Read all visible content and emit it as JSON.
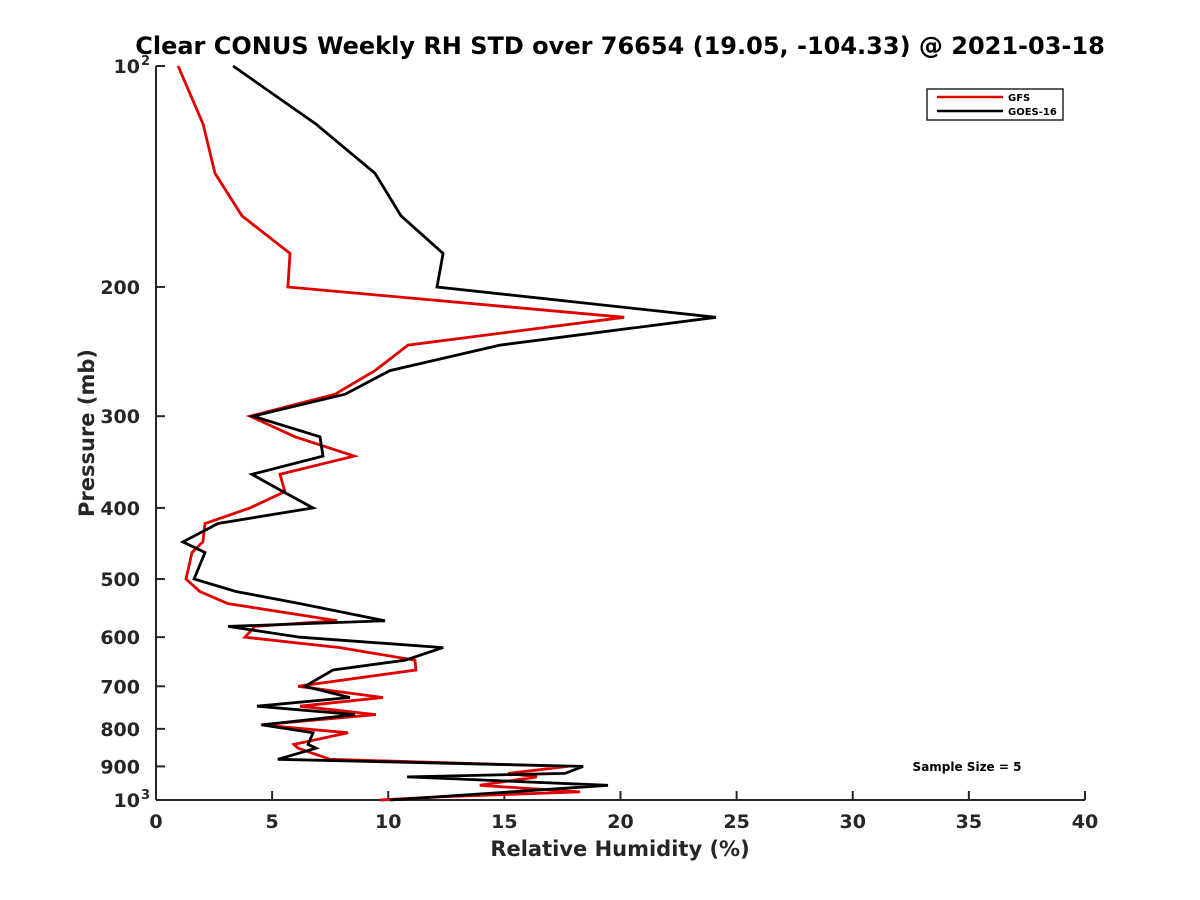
{
  "chart_data": {
    "type": "line",
    "title": "Clear CONUS Weekly RH STD over 76654 (19.05, -104.33) @ 2021-03-18",
    "xlabel": "Relative Humidity (%)",
    "ylabel": "Pressure (mb)",
    "xlim": [
      0,
      40
    ],
    "ylim": [
      100,
      1000
    ],
    "yscale": "log",
    "yreversed": true,
    "xticks": [
      0,
      5,
      10,
      15,
      20,
      25,
      30,
      35,
      40
    ],
    "xtick_labels": [
      "0",
      "5",
      "10",
      "15",
      "20",
      "25",
      "30",
      "35",
      "40"
    ],
    "yticks": [
      100,
      200,
      300,
      400,
      500,
      600,
      700,
      800,
      900,
      1000
    ],
    "ytick_labels": [
      "10",
      "200",
      "300",
      "400",
      "500",
      "600",
      "700",
      "800",
      "900",
      "10"
    ],
    "ytick_exponents": {
      "100": "2",
      "1000": "3"
    },
    "grid": false,
    "legend_position": "top-right",
    "annotation": "Sample Size = 5",
    "series": [
      {
        "name": "GFS",
        "color": "#e00000",
        "points": [
          [
            0.95,
            100
          ],
          [
            2.03,
            120
          ],
          [
            2.54,
            140
          ],
          [
            3.7,
            160
          ],
          [
            5.77,
            180
          ],
          [
            5.68,
            200
          ],
          [
            20.16,
            220
          ],
          [
            10.85,
            240
          ],
          [
            9.43,
            260
          ],
          [
            7.71,
            280
          ],
          [
            4.05,
            300
          ],
          [
            5.99,
            320
          ],
          [
            8.53,
            340
          ],
          [
            5.34,
            360
          ],
          [
            5.55,
            380
          ],
          [
            4.05,
            400
          ],
          [
            2.11,
            420
          ],
          [
            2.02,
            445
          ],
          [
            1.55,
            460
          ],
          [
            1.29,
            500
          ],
          [
            1.89,
            520
          ],
          [
            3.1,
            540
          ],
          [
            7.8,
            570
          ],
          [
            4.26,
            580
          ],
          [
            3.83,
            600
          ],
          [
            7.92,
            620
          ],
          [
            11.15,
            645
          ],
          [
            11.19,
            665
          ],
          [
            6.12,
            700
          ],
          [
            9.77,
            725
          ],
          [
            6.2,
            745
          ],
          [
            9.47,
            765
          ],
          [
            4.52,
            790
          ],
          [
            8.27,
            810
          ],
          [
            5.94,
            840
          ],
          [
            6.12,
            850
          ],
          [
            7.49,
            880
          ],
          [
            17.74,
            900
          ],
          [
            15.15,
            920
          ],
          [
            16.4,
            930
          ],
          [
            13.94,
            955
          ],
          [
            18.26,
            975
          ],
          [
            12.23,
            990
          ],
          [
            9.64,
            1000
          ]
        ]
      },
      {
        "name": "GOES-16",
        "color": "#000000",
        "points": [
          [
            3.32,
            100
          ],
          [
            6.89,
            120
          ],
          [
            9.43,
            140
          ],
          [
            10.55,
            160
          ],
          [
            12.36,
            180
          ],
          [
            12.1,
            200
          ],
          [
            24.11,
            220
          ],
          [
            14.81,
            240
          ],
          [
            10.07,
            260
          ],
          [
            8.14,
            280
          ],
          [
            4.18,
            300
          ],
          [
            7.06,
            320
          ],
          [
            7.19,
            340
          ],
          [
            4.13,
            360
          ],
          [
            5.47,
            380
          ],
          [
            6.76,
            400
          ],
          [
            2.67,
            420
          ],
          [
            1.16,
            445
          ],
          [
            2.11,
            460
          ],
          [
            1.64,
            500
          ],
          [
            3.44,
            520
          ],
          [
            6.2,
            540
          ],
          [
            9.86,
            570
          ],
          [
            3.1,
            580
          ],
          [
            6.2,
            600
          ],
          [
            12.36,
            620
          ],
          [
            10.72,
            645
          ],
          [
            7.62,
            665
          ],
          [
            6.41,
            700
          ],
          [
            8.35,
            725
          ],
          [
            4.35,
            745
          ],
          [
            8.57,
            765
          ],
          [
            4.56,
            790
          ],
          [
            6.76,
            810
          ],
          [
            6.55,
            840
          ],
          [
            6.89,
            850
          ],
          [
            5.25,
            880
          ],
          [
            18.39,
            900
          ],
          [
            17.61,
            920
          ],
          [
            10.81,
            930
          ],
          [
            19.46,
            955
          ],
          [
            10.07,
            1000
          ]
        ]
      }
    ]
  }
}
